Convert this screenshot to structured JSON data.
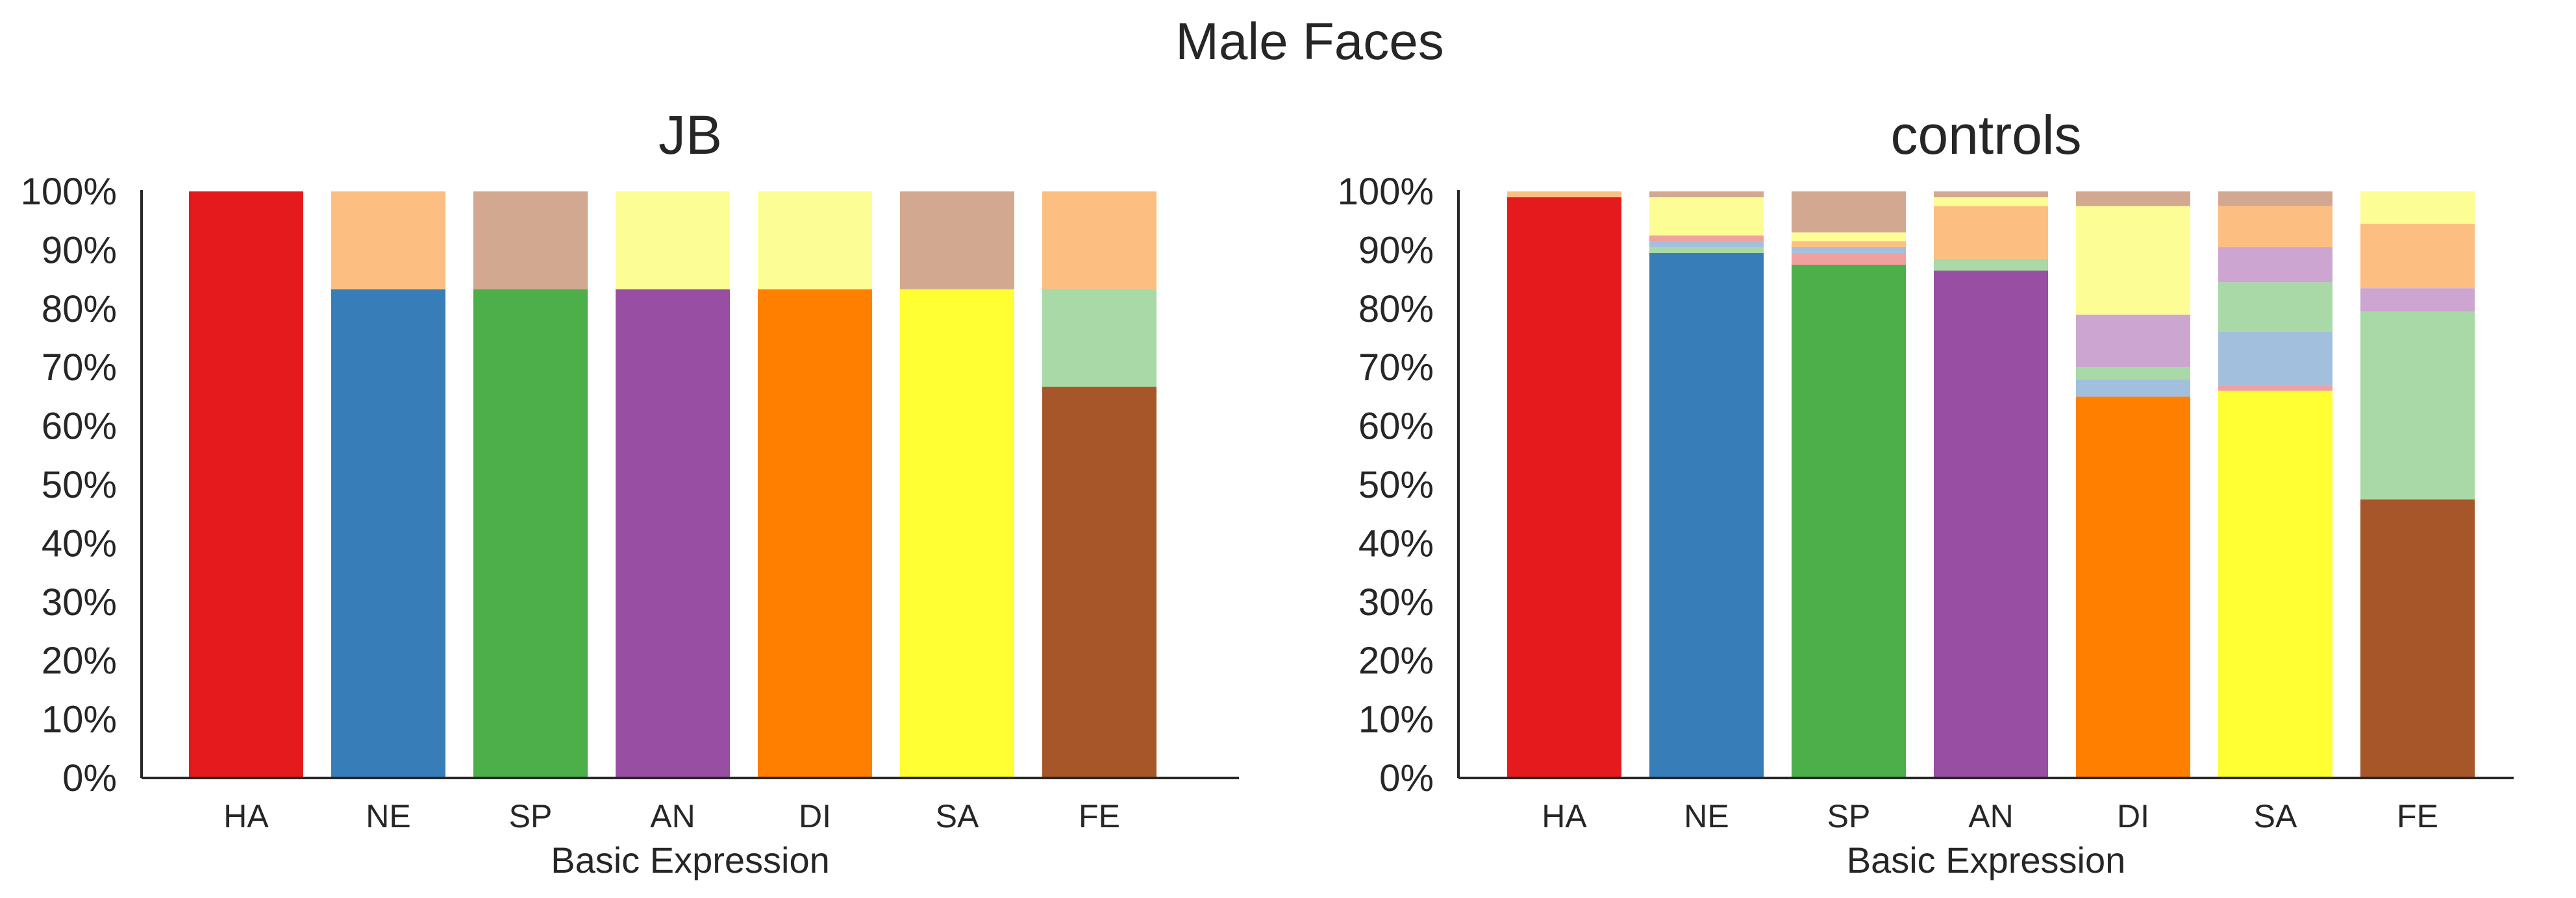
{
  "figure": {
    "title": "Male Faces"
  },
  "chart_data": [
    {
      "type": "bar",
      "stacked": true,
      "title": "JB",
      "xlabel": "Basic Expression",
      "ylabel": "",
      "ylim": [
        0,
        100
      ],
      "yticks": [
        "0%",
        "10%",
        "20%",
        "30%",
        "40%",
        "50%",
        "60%",
        "70%",
        "80%",
        "90%",
        "100%"
      ],
      "categories": [
        "HA",
        "NE",
        "SP",
        "AN",
        "DI",
        "SA",
        "FE"
      ],
      "grid": false,
      "stacks": [
        [
          {
            "value": 100.0,
            "color": "#e41a1c"
          }
        ],
        [
          {
            "value": 83.3,
            "color": "#377eb8"
          },
          {
            "value": 16.7,
            "color": "#fdbf81"
          }
        ],
        [
          {
            "value": 83.3,
            "color": "#4daf4a"
          },
          {
            "value": 16.7,
            "color": "#d3a890"
          }
        ],
        [
          {
            "value": 83.3,
            "color": "#984ea3"
          },
          {
            "value": 16.7,
            "color": "#fdfd96"
          }
        ],
        [
          {
            "value": 83.3,
            "color": "#ff7f00"
          },
          {
            "value": 16.7,
            "color": "#fdfd96"
          }
        ],
        [
          {
            "value": 83.3,
            "color": "#ffff33"
          },
          {
            "value": 16.7,
            "color": "#d3a890"
          }
        ],
        [
          {
            "value": 66.7,
            "color": "#a65628"
          },
          {
            "value": 16.7,
            "color": "#a8d9a6"
          },
          {
            "value": 16.6,
            "color": "#fdbf81"
          }
        ]
      ]
    },
    {
      "type": "bar",
      "stacked": true,
      "title": "controls",
      "xlabel": "Basic Expression",
      "ylabel": "",
      "ylim": [
        0,
        100
      ],
      "yticks": [
        "0%",
        "10%",
        "20%",
        "30%",
        "40%",
        "50%",
        "60%",
        "70%",
        "80%",
        "90%",
        "100%"
      ],
      "categories": [
        "HA",
        "NE",
        "SP",
        "AN",
        "DI",
        "SA",
        "FE"
      ],
      "grid": false,
      "stacks": [
        [
          {
            "value": 99.0,
            "color": "#e41a1c"
          },
          {
            "value": 1.0,
            "color": "#fdbf81"
          }
        ],
        [
          {
            "value": 89.5,
            "color": "#377eb8"
          },
          {
            "value": 1.0,
            "color": "#a8d9a6"
          },
          {
            "value": 1.0,
            "color": "#a2bfdd"
          },
          {
            "value": 1.0,
            "color": "#f19f9f"
          },
          {
            "value": 6.5,
            "color": "#fdfd96"
          },
          {
            "value": 1.0,
            "color": "#d3a890"
          }
        ],
        [
          {
            "value": 87.5,
            "color": "#4daf4a"
          },
          {
            "value": 2.0,
            "color": "#f19f9f"
          },
          {
            "value": 1.0,
            "color": "#a2bfdd"
          },
          {
            "value": 1.0,
            "color": "#fdbf81"
          },
          {
            "value": 1.5,
            "color": "#fdfd96"
          },
          {
            "value": 7.0,
            "color": "#d3a890"
          }
        ],
        [
          {
            "value": 86.5,
            "color": "#984ea3"
          },
          {
            "value": 2.0,
            "color": "#a8d9a6"
          },
          {
            "value": 9.0,
            "color": "#fdbf81"
          },
          {
            "value": 1.5,
            "color": "#fdfd96"
          },
          {
            "value": 1.0,
            "color": "#d3a890"
          }
        ],
        [
          {
            "value": 65.0,
            "color": "#ff7f00"
          },
          {
            "value": 3.0,
            "color": "#a2bfdd"
          },
          {
            "value": 2.0,
            "color": "#a8d9a6"
          },
          {
            "value": 9.0,
            "color": "#cca6d1"
          },
          {
            "value": 18.5,
            "color": "#fdfd96"
          },
          {
            "value": 2.5,
            "color": "#d3a890"
          }
        ],
        [
          {
            "value": 66.0,
            "color": "#ffff33"
          },
          {
            "value": 1.0,
            "color": "#f19f9f"
          },
          {
            "value": 9.0,
            "color": "#a2bfdd"
          },
          {
            "value": 8.5,
            "color": "#a8d9a6"
          },
          {
            "value": 6.0,
            "color": "#cca6d1"
          },
          {
            "value": 7.0,
            "color": "#fdbf81"
          },
          {
            "value": 2.5,
            "color": "#d3a890"
          }
        ],
        [
          {
            "value": 47.5,
            "color": "#a65628"
          },
          {
            "value": 32.0,
            "color": "#a8d9a6"
          },
          {
            "value": 4.0,
            "color": "#cca6d1"
          },
          {
            "value": 11.0,
            "color": "#fdbf81"
          },
          {
            "value": 5.5,
            "color": "#fdfd96"
          }
        ]
      ]
    }
  ]
}
